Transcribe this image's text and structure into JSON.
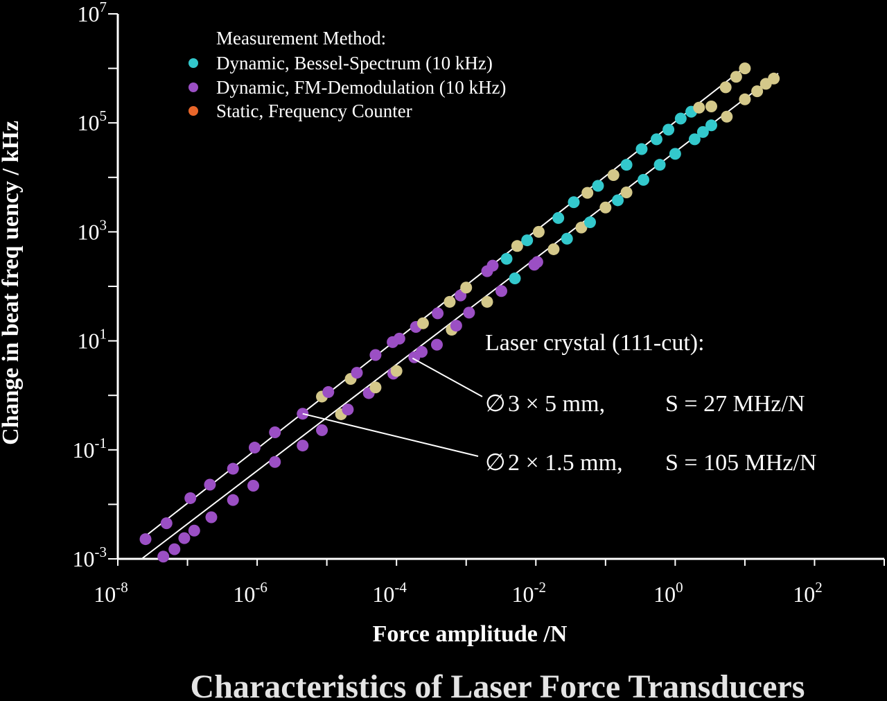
{
  "chart_data": {
    "type": "scatter",
    "title": "Characteristics of Laser Force Transducers",
    "xlabel": "Force amplitude /N",
    "ylabel": "Change in beat freq uency / kHz",
    "xscale": "log",
    "yscale": "log",
    "xlim": [
      1e-08,
      1000
    ],
    "ylim": [
      0.001,
      10000000
    ],
    "xticks": [
      {
        "base": "10",
        "exp": "-8",
        "value": 1e-08
      },
      {
        "base": "10",
        "exp": "-6",
        "value": 1e-06
      },
      {
        "base": "10",
        "exp": "-4",
        "value": 0.0001
      },
      {
        "base": "10",
        "exp": "-2",
        "value": 0.01
      },
      {
        "base": "10",
        "exp": "0",
        "value": 1
      },
      {
        "base": "10",
        "exp": "2",
        "value": 100
      }
    ],
    "yticks": [
      {
        "base": "10",
        "exp": "-3",
        "value": 0.001
      },
      {
        "base": "10",
        "exp": "-1",
        "value": 0.1
      },
      {
        "base": "10",
        "exp": "1",
        "value": 10
      },
      {
        "base": "10",
        "exp": "3",
        "value": 1000
      },
      {
        "base": "10",
        "exp": "5",
        "value": 100000
      },
      {
        "base": "10",
        "exp": "7",
        "value": 10000000
      }
    ],
    "grid": false,
    "legend": {
      "placement": "top-left",
      "title": "Measurement Method:",
      "entries": [
        {
          "label": "Dynamic, Bessel-Spectrum (10 kHz)",
          "color": "#33c8cc"
        },
        {
          "label": "Dynamic, FM-Demodulation (10 kHz)",
          "color": "#9b4fc4"
        },
        {
          "label": "Static, Frequency Counter",
          "color": "#e8662a"
        }
      ]
    },
    "data_point_colors": {
      "bessel": "#33c8cc",
      "fm": "#9b4fc4",
      "static": "#d4c88a"
    },
    "fit_line_color": "#ffffff",
    "series": [
      {
        "crystal": "3 × 5 mm",
        "sensitivity": "27 MHz/N",
        "fit": {
          "slope_kHz_per_N": 27000,
          "x_range": [
            2.2e-08,
            30
          ]
        },
        "points": [
          {
            "x": 4.5e-08,
            "y": 0.0011,
            "m": "fm"
          },
          {
            "x": 6.5e-08,
            "y": 0.0015,
            "m": "fm"
          },
          {
            "x": 9e-08,
            "y": 0.0024,
            "m": "fm"
          },
          {
            "x": 1.25e-07,
            "y": 0.0033,
            "m": "fm"
          },
          {
            "x": 2.2e-07,
            "y": 0.0058,
            "m": "fm"
          },
          {
            "x": 4.5e-07,
            "y": 0.012,
            "m": "fm"
          },
          {
            "x": 8.8e-07,
            "y": 0.022,
            "m": "fm"
          },
          {
            "x": 1.8e-06,
            "y": 0.06,
            "m": "fm"
          },
          {
            "x": 4.5e-06,
            "y": 0.12,
            "m": "fm"
          },
          {
            "x": 8.5e-06,
            "y": 0.23,
            "m": "fm"
          },
          {
            "x": 1.6e-05,
            "y": 0.45,
            "m": "static"
          },
          {
            "x": 2e-05,
            "y": 0.55,
            "m": "fm"
          },
          {
            "x": 4e-05,
            "y": 1.1,
            "m": "fm"
          },
          {
            "x": 5e-05,
            "y": 1.4,
            "m": "static"
          },
          {
            "x": 9e-05,
            "y": 2.5,
            "m": "fm"
          },
          {
            "x": 0.0001,
            "y": 2.8,
            "m": "static"
          },
          {
            "x": 0.00018,
            "y": 5.0,
            "m": "fm"
          },
          {
            "x": 0.00023,
            "y": 6.3,
            "m": "fm"
          },
          {
            "x": 0.00038,
            "y": 8.5,
            "m": "fm"
          },
          {
            "x": 0.00062,
            "y": 16,
            "m": "static"
          },
          {
            "x": 0.00072,
            "y": 19,
            "m": "fm"
          },
          {
            "x": 0.0011,
            "y": 33,
            "m": "fm"
          },
          {
            "x": 0.002,
            "y": 52,
            "m": "static"
          },
          {
            "x": 0.0032,
            "y": 82,
            "m": "fm"
          },
          {
            "x": 0.005,
            "y": 140,
            "m": "bessel"
          },
          {
            "x": 0.0095,
            "y": 250,
            "m": "fm"
          },
          {
            "x": 0.0105,
            "y": 280,
            "m": "fm"
          },
          {
            "x": 0.018,
            "y": 480,
            "m": "static"
          },
          {
            "x": 0.028,
            "y": 750,
            "m": "bessel"
          },
          {
            "x": 0.045,
            "y": 1200,
            "m": "static"
          },
          {
            "x": 0.06,
            "y": 1500,
            "m": "bessel"
          },
          {
            "x": 0.1,
            "y": 2800,
            "m": "static"
          },
          {
            "x": 0.15,
            "y": 3800,
            "m": "bessel"
          },
          {
            "x": 0.2,
            "y": 5300,
            "m": "static"
          },
          {
            "x": 0.35,
            "y": 9000,
            "m": "bessel"
          },
          {
            "x": 0.6,
            "y": 17000,
            "m": "bessel"
          },
          {
            "x": 1.0,
            "y": 27000,
            "m": "bessel"
          },
          {
            "x": 1.9,
            "y": 50000,
            "m": "bessel"
          },
          {
            "x": 2.5,
            "y": 68000,
            "m": "bessel"
          },
          {
            "x": 3.3,
            "y": 90000,
            "m": "bessel"
          },
          {
            "x": 5.5,
            "y": 130000,
            "m": "static"
          },
          {
            "x": 10,
            "y": 270000,
            "m": "static"
          },
          {
            "x": 15,
            "y": 380000,
            "m": "static"
          },
          {
            "x": 20,
            "y": 520000,
            "m": "static"
          },
          {
            "x": 26,
            "y": 650000,
            "m": "static"
          }
        ]
      },
      {
        "crystal": "2 × 1.5 mm",
        "sensitivity": "105 MHz/N",
        "fit": {
          "slope_kHz_per_N": 105000,
          "x_range": [
            2.2e-08,
            10
          ]
        },
        "points": [
          {
            "x": 2.5e-08,
            "y": 0.0023,
            "m": "fm"
          },
          {
            "x": 5e-08,
            "y": 0.0045,
            "m": "fm"
          },
          {
            "x": 1.1e-07,
            "y": 0.013,
            "m": "fm"
          },
          {
            "x": 2.1e-07,
            "y": 0.023,
            "m": "fm"
          },
          {
            "x": 4.5e-07,
            "y": 0.045,
            "m": "fm"
          },
          {
            "x": 9.2e-07,
            "y": 0.11,
            "m": "fm"
          },
          {
            "x": 1.8e-06,
            "y": 0.21,
            "m": "fm"
          },
          {
            "x": 4.5e-06,
            "y": 0.46,
            "m": "fm"
          },
          {
            "x": 8.5e-06,
            "y": 0.95,
            "m": "static"
          },
          {
            "x": 1.05e-05,
            "y": 1.15,
            "m": "fm"
          },
          {
            "x": 2.2e-05,
            "y": 2.0,
            "m": "static"
          },
          {
            "x": 2.7e-05,
            "y": 2.6,
            "m": "fm"
          },
          {
            "x": 5e-05,
            "y": 5.5,
            "m": "fm"
          },
          {
            "x": 8.8e-05,
            "y": 9.5,
            "m": "fm"
          },
          {
            "x": 0.00011,
            "y": 11,
            "m": "fm"
          },
          {
            "x": 0.00019,
            "y": 18,
            "m": "fm"
          },
          {
            "x": 0.00024,
            "y": 21,
            "m": "static"
          },
          {
            "x": 0.00039,
            "y": 32,
            "m": "fm"
          },
          {
            "x": 0.00058,
            "y": 52,
            "m": "static"
          },
          {
            "x": 0.00083,
            "y": 68,
            "m": "fm"
          },
          {
            "x": 0.001,
            "y": 95,
            "m": "static"
          },
          {
            "x": 0.002,
            "y": 190,
            "m": "fm"
          },
          {
            "x": 0.0024,
            "y": 240,
            "m": "fm"
          },
          {
            "x": 0.0038,
            "y": 320,
            "m": "bessel"
          },
          {
            "x": 0.0054,
            "y": 550,
            "m": "static"
          },
          {
            "x": 0.0075,
            "y": 700,
            "m": "bessel"
          },
          {
            "x": 0.011,
            "y": 1000,
            "m": "static"
          },
          {
            "x": 0.021,
            "y": 1800,
            "m": "bessel"
          },
          {
            "x": 0.035,
            "y": 3500,
            "m": "bessel"
          },
          {
            "x": 0.055,
            "y": 5200,
            "m": "static"
          },
          {
            "x": 0.078,
            "y": 7000,
            "m": "bessel"
          },
          {
            "x": 0.13,
            "y": 11000,
            "m": "static"
          },
          {
            "x": 0.2,
            "y": 17000,
            "m": "bessel"
          },
          {
            "x": 0.33,
            "y": 33000,
            "m": "bessel"
          },
          {
            "x": 0.54,
            "y": 50000,
            "m": "bessel"
          },
          {
            "x": 0.8,
            "y": 75000,
            "m": "bessel"
          },
          {
            "x": 1.2,
            "y": 120000,
            "m": "bessel"
          },
          {
            "x": 1.7,
            "y": 160000,
            "m": "bessel"
          },
          {
            "x": 2.2,
            "y": 190000,
            "m": "static"
          },
          {
            "x": 3.3,
            "y": 200000,
            "m": "static"
          },
          {
            "x": 5.3,
            "y": 450000,
            "m": "static"
          },
          {
            "x": 7.5,
            "y": 700000,
            "m": "static"
          },
          {
            "x": 10,
            "y": 1000000,
            "m": "static"
          }
        ]
      }
    ],
    "annotations": {
      "heading": "Laser crystal (111-cut):",
      "lines": [
        {
          "diameter_symbol": "∅",
          "size": "3 × 5 mm,",
          "sensitivity": "S = 27 MHz/N",
          "pointer_x": 0.00017,
          "pointer_y": 4.8
        },
        {
          "diameter_symbol": "∅",
          "size": "2 × 1.5 mm,",
          "sensitivity": "S = 105 MHz/N",
          "pointer_x": 4.5e-06,
          "pointer_y": 0.46
        }
      ]
    }
  }
}
